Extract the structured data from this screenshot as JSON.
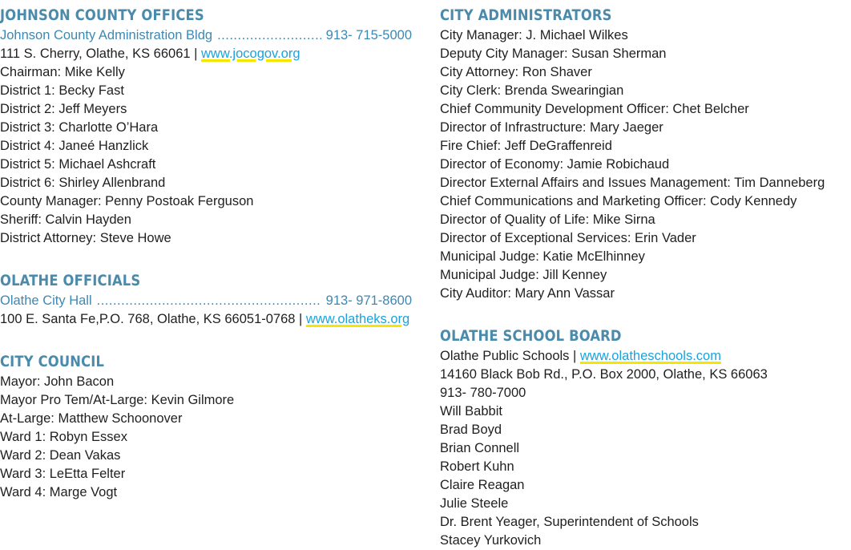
{
  "johnson_county": {
    "title": "JOHNSON COUNTY OFFICES",
    "contact_name": "Johnson County Administration Bldg",
    "contact_phone": "913- 715-5000",
    "address_prefix": "111 S. Cherry, Olathe, KS 66061 |",
    "website": "www.jocogov.org",
    "lines": [
      "Chairman: Mike Kelly",
      "District 1: Becky Fast",
      "District 2: Jeff Meyers",
      "District 3: Charlotte O’Hara",
      "District 4: Janeé Hanzlick",
      "District 5: Michael Ashcraft",
      "District 6: Shirley Allenbrand",
      "County Manager: Penny Postoak Ferguson",
      "Sheriff: Calvin Hayden",
      "District Attorney: Steve Howe"
    ]
  },
  "olathe_officials": {
    "title": "OLATHE OFFICIALS",
    "contact_name": "Olathe City Hall",
    "contact_phone": "913- 971-8600",
    "address_prefix": "100 E. Santa Fe,P.O. 768, Olathe, KS 66051-0768 |",
    "website": "www.olatheks.org"
  },
  "city_council": {
    "title": "CITY COUNCIL",
    "lines": [
      "Mayor: John Bacon",
      "Mayor Pro Tem/At-Large: Kevin Gilmore",
      "At-Large: Matthew Schoonover",
      "Ward 1: Robyn Essex",
      "Ward 2: Dean Vakas",
      "Ward 3: LeEtta Felter",
      "Ward 4: Marge Vogt"
    ]
  },
  "city_administrators": {
    "title": "CITY ADMINISTRATORS",
    "lines": [
      "City Manager: J. Michael Wilkes",
      "Deputy City Manager: Susan Sherman",
      "City Attorney: Ron Shaver",
      "City Clerk: Brenda Swearingian",
      "Chief Community Development Officer: Chet Belcher",
      "Director of Infrastructure: Mary Jaeger",
      "Fire Chief: Jeff DeGraffenreid",
      "Director of Economy: Jamie Robichaud",
      "Director External Affairs and Issues Management: Tim Danneberg",
      "Chief Communications and Marketing Officer: Cody Kennedy",
      "Director of Quality of Life: Mike Sirna",
      "Director of Exceptional Services: Erin Vader",
      "Municipal Judge: Katie McElhinney",
      "Municipal Judge: Jill Kenney",
      "City Auditor: Mary Ann Vassar"
    ]
  },
  "school_board": {
    "title": "OLATHE SCHOOL BOARD",
    "org_prefix": "Olathe Public Schools |",
    "website": "www.olatheschools.com",
    "address": "14160 Black Bob Rd., P.O. Box 2000, Olathe, KS 66063",
    "phone": "913- 780-7000",
    "lines": [
      "Will Babbit",
      "Brad Boyd",
      "Brian Connell",
      "Robert Kuhn",
      "Claire Reagan",
      "Julie Steele",
      "Dr. Brent Yeager, Superintendent of Schools",
      "Stacey Yurkovich"
    ]
  }
}
